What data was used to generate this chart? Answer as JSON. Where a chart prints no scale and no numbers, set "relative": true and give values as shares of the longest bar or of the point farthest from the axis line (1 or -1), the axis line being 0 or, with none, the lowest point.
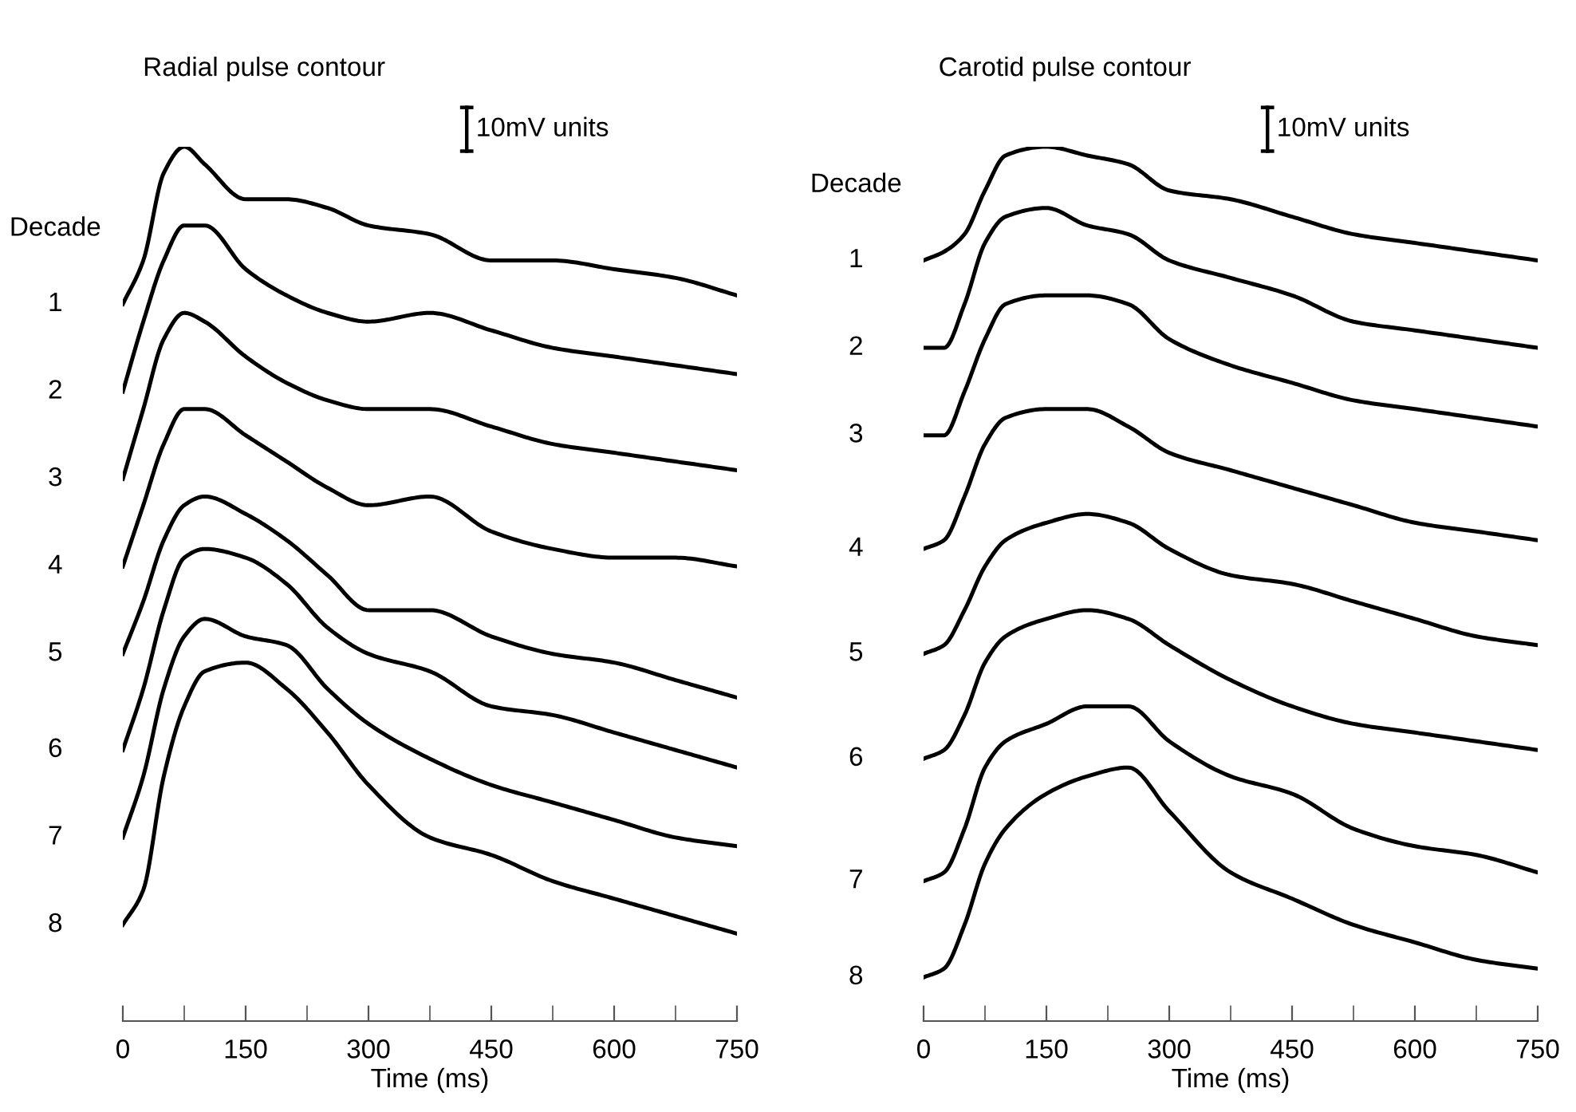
{
  "chart_data": [
    {
      "type": "line",
      "title": "Radial pulse contour",
      "xlabel": "Time (ms)",
      "legend_title": "Decade",
      "relative": true,
      "tick_labels": "x",
      "grid": false,
      "annotations": [
        "10mV units"
      ],
      "x": [
        0,
        25,
        50,
        75,
        100,
        150,
        200,
        250,
        300,
        375,
        450,
        525,
        600,
        675,
        750
      ],
      "xlim": [
        0,
        750
      ],
      "xticks": [
        0,
        {
          "value": 75,
          "label": null
        },
        150,
        {
          "value": 225,
          "label": null
        },
        300,
        {
          "value": 375,
          "label": null
        },
        450,
        {
          "value": 525,
          "label": null
        },
        600,
        {
          "value": 675,
          "label": null
        },
        750
      ],
      "series": [
        {
          "name": "1",
          "color": "#000000",
          "values": [
            0.82,
            0.87,
            0.97,
            1.0,
            0.98,
            0.94,
            0.94,
            0.93,
            0.91,
            0.9,
            0.87,
            0.87,
            0.86,
            0.85,
            0.83
          ]
        },
        {
          "name": "2",
          "color": "#000000",
          "values": [
            0.72,
            0.8,
            0.87,
            0.91,
            0.91,
            0.86,
            0.83,
            0.81,
            0.8,
            0.81,
            0.79,
            0.77,
            0.76,
            0.75,
            0.74
          ]
        },
        {
          "name": "3",
          "color": "#000000",
          "values": [
            0.62,
            0.7,
            0.78,
            0.81,
            0.8,
            0.76,
            0.73,
            0.71,
            0.7,
            0.7,
            0.68,
            0.66,
            0.65,
            0.64,
            0.63
          ]
        },
        {
          "name": "4",
          "color": "#000000",
          "values": [
            0.52,
            0.59,
            0.66,
            0.7,
            0.7,
            0.67,
            0.64,
            0.61,
            0.59,
            0.6,
            0.56,
            0.54,
            0.53,
            0.53,
            0.52
          ]
        },
        {
          "name": "5",
          "color": "#000000",
          "values": [
            0.42,
            0.48,
            0.55,
            0.59,
            0.6,
            0.58,
            0.55,
            0.51,
            0.47,
            0.47,
            0.44,
            0.42,
            0.41,
            0.39,
            0.37
          ]
        },
        {
          "name": "6",
          "color": "#000000",
          "values": [
            0.31,
            0.38,
            0.47,
            0.53,
            0.54,
            0.53,
            0.5,
            0.45,
            0.42,
            0.4,
            0.36,
            0.35,
            0.33,
            0.31,
            0.29
          ]
        },
        {
          "name": "7",
          "color": "#000000",
          "values": [
            0.21,
            0.28,
            0.38,
            0.44,
            0.46,
            0.44,
            0.43,
            0.38,
            0.34,
            0.3,
            0.27,
            0.25,
            0.23,
            0.21,
            0.2
          ]
        },
        {
          "name": "8",
          "color": "#000000",
          "values": [
            0.11,
            0.15,
            0.28,
            0.36,
            0.4,
            0.41,
            0.38,
            0.33,
            0.27,
            0.21,
            0.19,
            0.16,
            0.14,
            0.12,
            0.1
          ]
        }
      ]
    },
    {
      "type": "line",
      "title": "Carotid pulse contour",
      "xlabel": "Time (ms)",
      "legend_title": "Decade",
      "relative": true,
      "tick_labels": "x",
      "grid": false,
      "annotations": [
        "10mV units"
      ],
      "x": [
        0,
        25,
        50,
        75,
        100,
        150,
        200,
        250,
        300,
        375,
        450,
        525,
        600,
        675,
        750
      ],
      "xlim": [
        0,
        750
      ],
      "xticks": [
        0,
        {
          "value": 75,
          "label": null
        },
        150,
        {
          "value": 225,
          "label": null
        },
        300,
        {
          "value": 375,
          "label": null
        },
        450,
        {
          "value": 525,
          "label": null
        },
        600,
        {
          "value": 675,
          "label": null
        },
        750
      ],
      "series": [
        {
          "name": "1",
          "color": "#000000",
          "values": [
            0.87,
            0.88,
            0.9,
            0.95,
            0.99,
            1.0,
            0.99,
            0.98,
            0.95,
            0.94,
            0.92,
            0.9,
            0.89,
            0.88,
            0.87
          ]
        },
        {
          "name": "2",
          "color": "#000000",
          "values": [
            0.77,
            0.77,
            0.82,
            0.89,
            0.92,
            0.93,
            0.91,
            0.9,
            0.87,
            0.85,
            0.83,
            0.8,
            0.79,
            0.78,
            0.77
          ]
        },
        {
          "name": "3",
          "color": "#000000",
          "values": [
            0.67,
            0.67,
            0.72,
            0.78,
            0.82,
            0.83,
            0.83,
            0.82,
            0.78,
            0.75,
            0.73,
            0.71,
            0.7,
            0.69,
            0.68
          ]
        },
        {
          "name": "4",
          "color": "#000000",
          "values": [
            0.54,
            0.55,
            0.6,
            0.66,
            0.69,
            0.7,
            0.7,
            0.68,
            0.65,
            0.63,
            0.61,
            0.59,
            0.57,
            0.56,
            0.55
          ]
        },
        {
          "name": "5",
          "color": "#000000",
          "values": [
            0.42,
            0.43,
            0.47,
            0.52,
            0.55,
            0.57,
            0.58,
            0.57,
            0.54,
            0.51,
            0.5,
            0.48,
            0.46,
            0.44,
            0.43
          ]
        },
        {
          "name": "6",
          "color": "#000000",
          "values": [
            0.3,
            0.31,
            0.35,
            0.41,
            0.44,
            0.46,
            0.47,
            0.46,
            0.43,
            0.39,
            0.36,
            0.34,
            0.33,
            0.32,
            0.31
          ]
        },
        {
          "name": "7",
          "color": "#000000",
          "values": [
            0.16,
            0.17,
            0.22,
            0.29,
            0.32,
            0.34,
            0.36,
            0.36,
            0.32,
            0.28,
            0.26,
            0.22,
            0.2,
            0.19,
            0.17
          ]
        },
        {
          "name": "8",
          "color": "#000000",
          "values": [
            0.05,
            0.06,
            0.11,
            0.18,
            0.22,
            0.26,
            0.28,
            0.29,
            0.24,
            0.17,
            0.14,
            0.11,
            0.09,
            0.07,
            0.06
          ]
        }
      ]
    }
  ]
}
